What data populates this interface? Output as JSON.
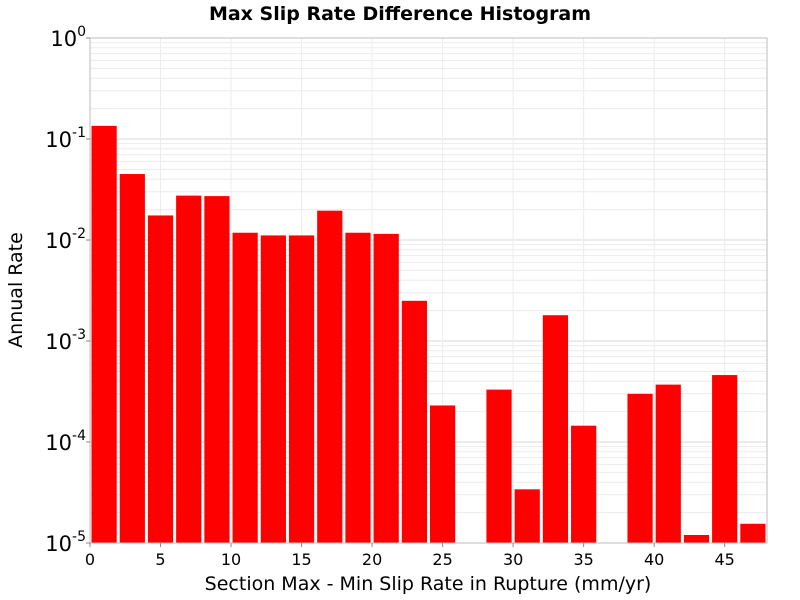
{
  "chart_data": {
    "type": "bar",
    "title": "Max Slip Rate Difference Histogram",
    "xlabel": "Section Max - Min Slip Rate in Rupture (mm/yr)",
    "ylabel": "Annual Rate",
    "y_scale": "log",
    "xlim": [
      0,
      48
    ],
    "ylim": [
      1e-05,
      1
    ],
    "grid": true,
    "bar_color": "#ff0000",
    "bin_width": 2,
    "x_ticks": [
      0,
      5,
      10,
      15,
      20,
      25,
      30,
      35,
      40,
      45
    ],
    "y_ticks": [
      {
        "value": 1,
        "base": "10",
        "exp": "0"
      },
      {
        "value": 0.1,
        "base": "10",
        "exp": "-1"
      },
      {
        "value": 0.01,
        "base": "10",
        "exp": "-2"
      },
      {
        "value": 0.001,
        "base": "10",
        "exp": "-3"
      },
      {
        "value": 0.0001,
        "base": "10",
        "exp": "-4"
      },
      {
        "value": 1e-05,
        "base": "10",
        "exp": "-5"
      }
    ],
    "bars": [
      {
        "x": 1,
        "value": 0.135
      },
      {
        "x": 3,
        "value": 0.045
      },
      {
        "x": 5,
        "value": 0.0175
      },
      {
        "x": 7,
        "value": 0.0275
      },
      {
        "x": 9,
        "value": 0.0272
      },
      {
        "x": 11,
        "value": 0.0118
      },
      {
        "x": 13,
        "value": 0.0111
      },
      {
        "x": 15,
        "value": 0.0111
      },
      {
        "x": 17,
        "value": 0.0195
      },
      {
        "x": 19,
        "value": 0.0118
      },
      {
        "x": 21,
        "value": 0.0115
      },
      {
        "x": 23,
        "value": 0.0025
      },
      {
        "x": 25,
        "value": 0.00023
      },
      {
        "x": 29,
        "value": 0.00033
      },
      {
        "x": 31,
        "value": 3.4e-05
      },
      {
        "x": 33,
        "value": 0.0018
      },
      {
        "x": 35,
        "value": 0.000145
      },
      {
        "x": 39,
        "value": 0.0003
      },
      {
        "x": 41,
        "value": 0.00037
      },
      {
        "x": 43,
        "value": 1.2e-05
      },
      {
        "x": 45,
        "value": 0.00046
      },
      {
        "x": 47,
        "value": 1.55e-05
      }
    ]
  }
}
